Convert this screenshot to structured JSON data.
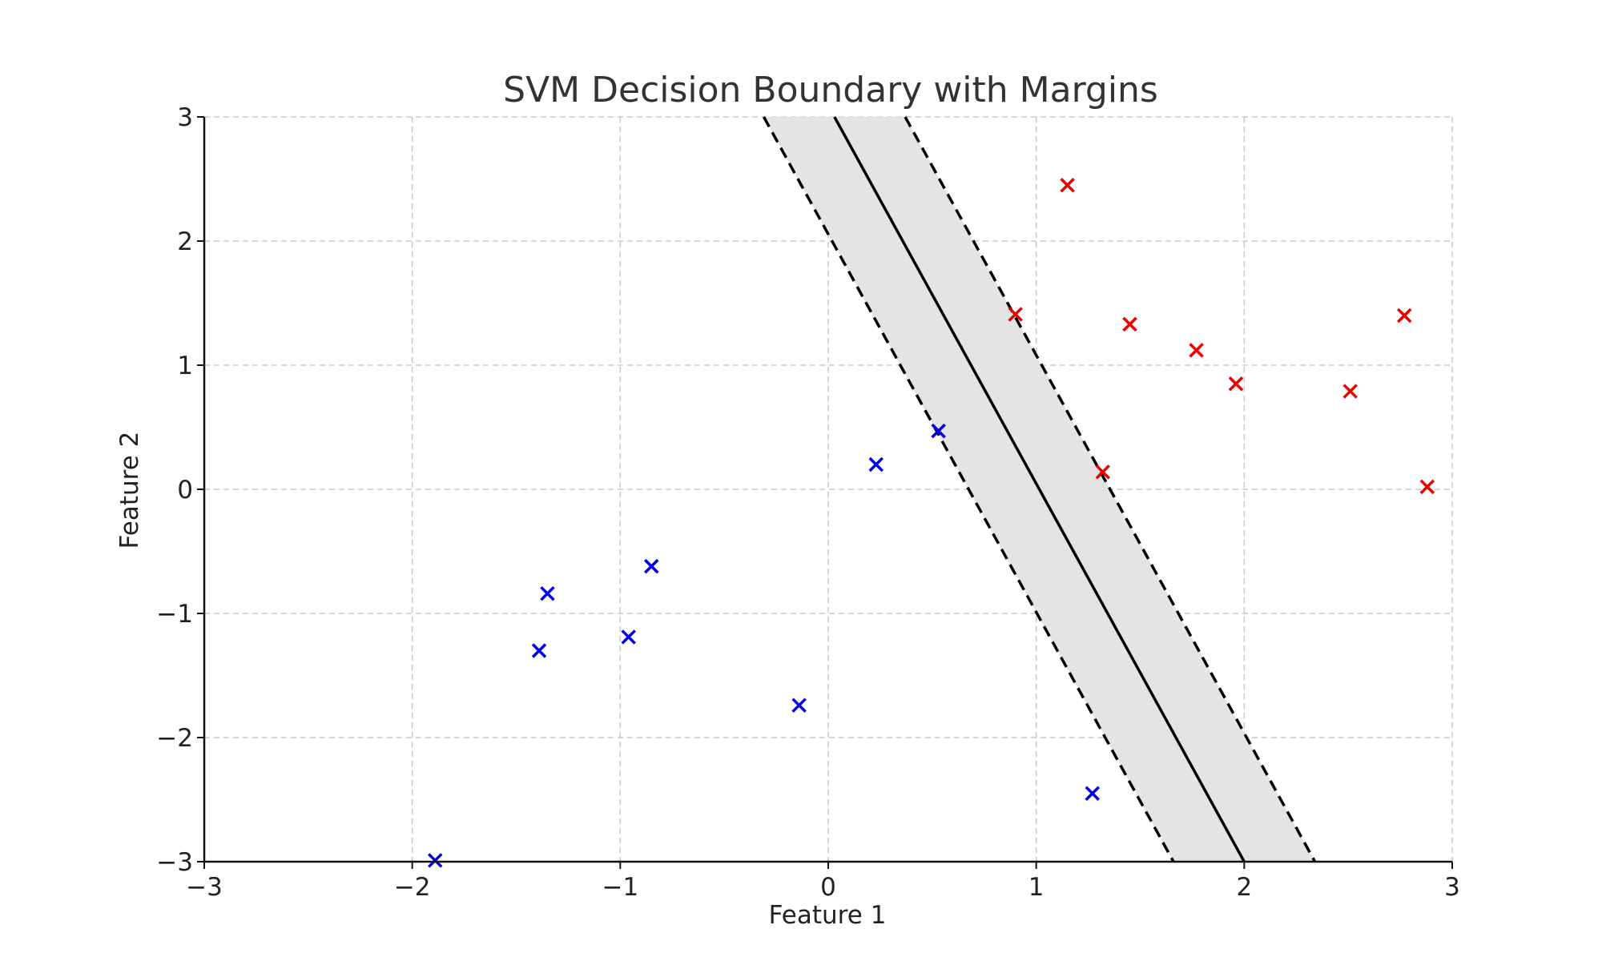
{
  "chart_data": {
    "type": "scatter",
    "title": "SVM Decision Boundary with Margins",
    "xlabel": "Feature 1",
    "ylabel": "Feature 2",
    "xlim": [
      -3,
      3
    ],
    "ylim": [
      -3,
      3
    ],
    "xticks": [
      -3,
      -2,
      -1,
      0,
      1,
      2,
      3
    ],
    "yticks": [
      -3,
      -2,
      -1,
      0,
      1,
      2,
      3
    ],
    "xtick_labels": [
      "−3",
      "−2",
      "−1",
      "0",
      "1",
      "2",
      "3"
    ],
    "ytick_labels": [
      "−3",
      "−2",
      "−1",
      "0",
      "1",
      "2",
      "3"
    ],
    "grid": true,
    "marker": "x",
    "series": [
      {
        "color": "#0000ee",
        "points": [
          [
            -1.89,
            -2.99
          ],
          [
            -1.39,
            -1.3
          ],
          [
            -1.35,
            -0.84
          ],
          [
            -0.96,
            -1.19
          ],
          [
            -0.85,
            -0.62
          ],
          [
            -0.14,
            -1.74
          ],
          [
            0.23,
            0.2
          ],
          [
            0.53,
            0.47
          ],
          [
            1.27,
            -2.45
          ]
        ]
      },
      {
        "color": "#ee0000",
        "points": [
          [
            0.9,
            1.41
          ],
          [
            1.15,
            2.45
          ],
          [
            1.32,
            0.14
          ],
          [
            1.45,
            1.33
          ],
          [
            1.77,
            1.12
          ],
          [
            1.96,
            0.85
          ],
          [
            2.51,
            0.79
          ],
          [
            2.77,
            1.4
          ],
          [
            2.88,
            0.02
          ]
        ]
      }
    ],
    "decision_boundary": {
      "line": [
        [
          0.03,
          3.0
        ],
        [
          2.0,
          -3.0
        ]
      ],
      "color": "#000000",
      "style": "solid"
    },
    "margins": [
      {
        "line": [
          [
            -0.31,
            3.0
          ],
          [
            1.66,
            -3.0
          ]
        ],
        "color": "#000000",
        "style": "dashed"
      },
      {
        "line": [
          [
            0.37,
            3.0
          ],
          [
            2.34,
            -3.0
          ]
        ],
        "color": "#000000",
        "style": "dashed"
      }
    ],
    "margin_fill_color": "#e4e4e4"
  }
}
